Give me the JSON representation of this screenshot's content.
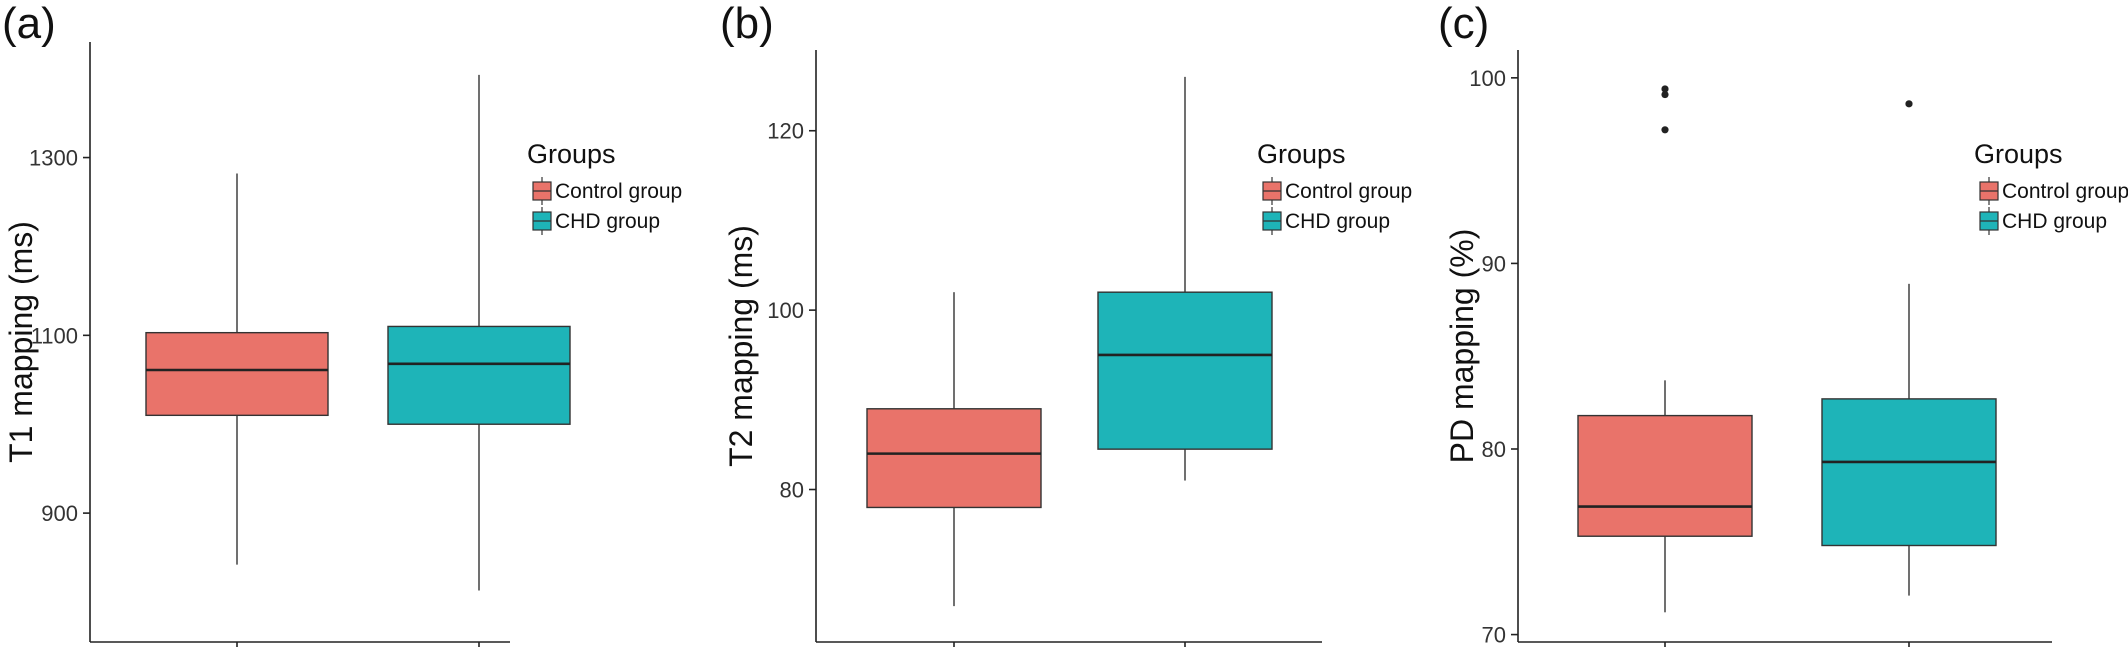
{
  "chart_data": [
    {
      "type": "box",
      "panel_label": "(a)",
      "ylabel": "T1 mapping (ms)",
      "ylim": [
        755,
        1430
      ],
      "yticks": [
        900,
        1100,
        1300
      ],
      "yticklabels": [
        "900",
        "1100",
        "1300"
      ],
      "grid": false,
      "legend": {
        "title": "Groups",
        "entries": [
          "Control group",
          "CHD group"
        ],
        "position": "right"
      },
      "series": [
        {
          "name": "Control group",
          "color": "#E9736A",
          "whisker_low": 842,
          "q1": 1010,
          "median": 1061,
          "q3": 1103,
          "whisker_high": 1282,
          "outliers": []
        },
        {
          "name": "CHD group",
          "color": "#1EB4B8",
          "whisker_low": 813,
          "q1": 1000,
          "median": 1068,
          "q3": 1110,
          "whisker_high": 1393,
          "outliers": []
        }
      ]
    },
    {
      "type": "box",
      "panel_label": "(b)",
      "ylabel": "T2 mapping (ms)",
      "ylim": [
        63,
        129
      ],
      "yticks": [
        80,
        100,
        120
      ],
      "yticklabels": [
        "80",
        "100",
        "120"
      ],
      "grid": false,
      "legend": {
        "title": "Groups",
        "entries": [
          "Control group",
          "CHD group"
        ],
        "position": "right"
      },
      "series": [
        {
          "name": "Control group",
          "color": "#E9736A",
          "whisker_low": 67,
          "q1": 78,
          "median": 84,
          "q3": 89,
          "whisker_high": 102,
          "outliers": []
        },
        {
          "name": "CHD group",
          "color": "#1EB4B8",
          "whisker_low": 81,
          "q1": 84.5,
          "median": 95,
          "q3": 102,
          "whisker_high": 126,
          "outliers": []
        }
      ]
    },
    {
      "type": "box",
      "panel_label": "(c)",
      "ylabel": "PD mapping (%)",
      "ylim": [
        69.6,
        101.5
      ],
      "yticks": [
        70,
        80,
        90,
        100
      ],
      "yticklabels": [
        "70",
        "80",
        "90",
        "100"
      ],
      "grid": false,
      "legend": {
        "title": "Groups",
        "entries": [
          "Control group",
          "CHD group"
        ],
        "position": "right"
      },
      "series": [
        {
          "name": "Control group",
          "color": "#E9736A",
          "whisker_low": 71.2,
          "q1": 75.3,
          "median": 76.9,
          "q3": 81.8,
          "whisker_high": 83.7,
          "outliers": [
            97.2,
            99.1,
            99.4
          ]
        },
        {
          "name": "CHD group",
          "color": "#1EB4B8",
          "whisker_low": 72.1,
          "q1": 74.8,
          "median": 79.3,
          "q3": 82.7,
          "whisker_high": 88.9,
          "outliers": [
            98.6
          ]
        }
      ]
    }
  ]
}
